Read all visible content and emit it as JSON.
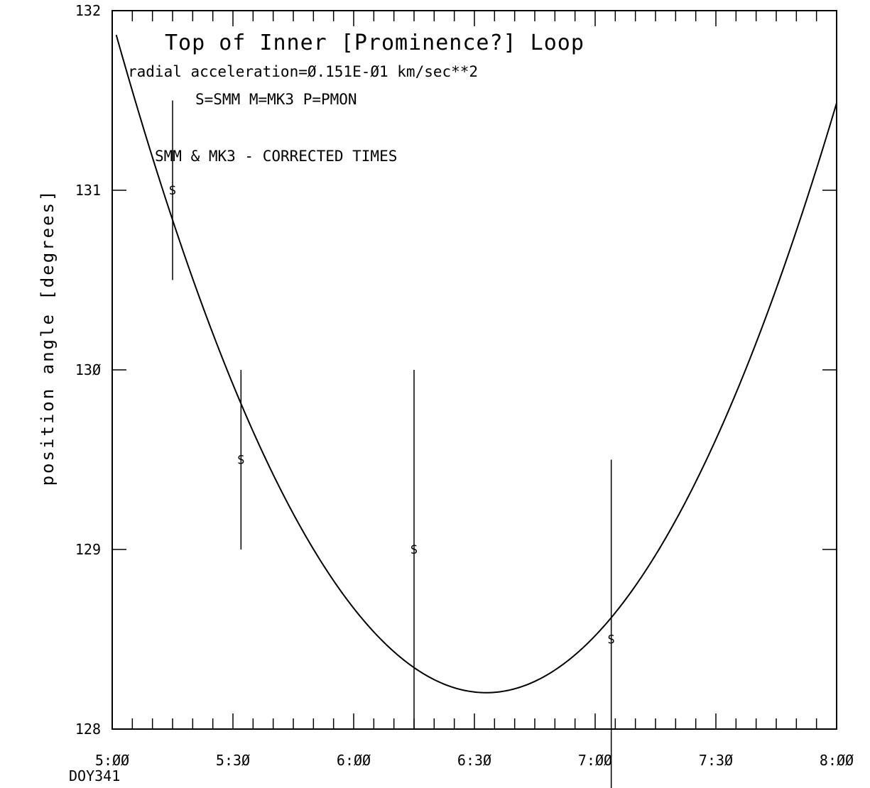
{
  "chart_data": {
    "type": "scatter",
    "title": "Top of Inner [Prominence?] Loop",
    "annotations": [
      "radial acceleration=Ø.151E-Ø1  km/sec**2",
      "S=SMM  M=MK3  P=PMON",
      "SMM & MK3 - CORRECTED TIMES"
    ],
    "xlabel": "",
    "ylabel": "position angle [degrees]",
    "x_unit_note": "DOY341",
    "xlim": [
      "5:00",
      "8:00"
    ],
    "ylim": [
      128,
      132
    ],
    "x_tick_labels": [
      "5:ØØ",
      "5:3Ø",
      "6:ØØ",
      "6:3Ø",
      "7:ØØ",
      "7:3Ø",
      "8:ØØ"
    ],
    "x_tick_values": [
      "5:00",
      "5:30",
      "6:00",
      "6:30",
      "7:00",
      "7:30",
      "8:00"
    ],
    "y_tick_labels": [
      "128",
      "129",
      "13Ø",
      "131",
      "132"
    ],
    "y_tick_values": [
      128,
      129,
      130,
      131,
      132
    ],
    "grid": false,
    "points": [
      {
        "label": "S",
        "instrument": "SMM",
        "x": "5:15",
        "y": 131.0,
        "y_low": 130.5,
        "y_high": 131.5
      },
      {
        "label": "S",
        "instrument": "SMM",
        "x": "5:32",
        "y": 129.5,
        "y_low": 129.0,
        "y_high": 130.0
      },
      {
        "label": "S",
        "instrument": "SMM",
        "x": "6:15",
        "y": 129.0,
        "y_low": 128.0,
        "y_high": 130.0
      },
      {
        "label": "S",
        "instrument": "SMM",
        "x": "7:04",
        "y": 128.5,
        "y_low": 127.5,
        "y_high": 129.5
      }
    ],
    "fit_curve": {
      "type": "quadratic",
      "points": [
        {
          "x": "5:01",
          "y": 131.92
        },
        {
          "x": "5:30",
          "y": 129.82
        },
        {
          "x": "6:00",
          "y": 128.71
        },
        {
          "x": "6:15",
          "y": 128.33
        },
        {
          "x": "6:33",
          "y": 128.2
        },
        {
          "x": "7:00",
          "y": 128.53
        },
        {
          "x": "7:30",
          "y": 129.66
        },
        {
          "x": "8:00",
          "y": 131.45
        }
      ]
    }
  }
}
